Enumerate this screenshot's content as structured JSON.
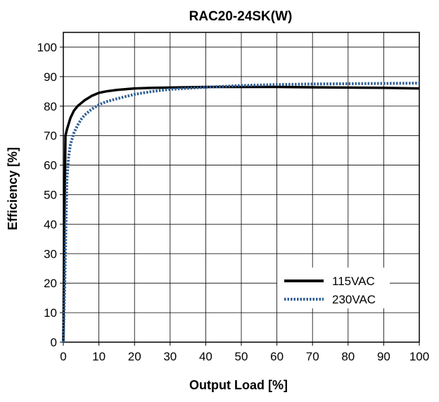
{
  "chart_data": {
    "type": "line",
    "title": "RAC20-24SK(W)",
    "xlabel": "Output Load [%]",
    "ylabel": "Efficiency [%]",
    "xlim": [
      0,
      100
    ],
    "ylim": [
      0,
      105
    ],
    "xticks": [
      0,
      10,
      20,
      30,
      40,
      50,
      60,
      70,
      80,
      90,
      100
    ],
    "yticks": [
      0,
      10,
      20,
      30,
      40,
      50,
      60,
      70,
      80,
      90,
      100
    ],
    "grid": true,
    "legend_position": "bottom-right",
    "series": [
      {
        "name": "115VAC",
        "color": "#000000",
        "style": "solid",
        "x": [
          0,
          0.3,
          0.6,
          1,
          1.5,
          2,
          3,
          4,
          5,
          6,
          8,
          10,
          12,
          15,
          20,
          25,
          30,
          40,
          50,
          60,
          70,
          80,
          90,
          100
        ],
        "y": [
          0,
          40,
          70,
          72,
          74,
          76,
          78.5,
          80,
          81,
          82,
          83.5,
          84.5,
          85,
          85.5,
          86,
          86.2,
          86.3,
          86.5,
          86.5,
          86.5,
          86.4,
          86.3,
          86.2,
          86
        ]
      },
      {
        "name": "230VAC",
        "color": "#2f5e95",
        "style": "dotted",
        "x": [
          0,
          0.5,
          1,
          1.5,
          2,
          3,
          4,
          5,
          6,
          8,
          10,
          12,
          15,
          20,
          25,
          30,
          40,
          50,
          60,
          70,
          80,
          90,
          100
        ],
        "y": [
          0,
          25,
          55,
          63,
          67,
          71,
          73.5,
          75.5,
          77,
          79,
          80.5,
          81.5,
          82.5,
          84,
          85,
          85.7,
          86.4,
          87,
          87.3,
          87.5,
          87.6,
          87.7,
          87.8
        ]
      }
    ]
  }
}
